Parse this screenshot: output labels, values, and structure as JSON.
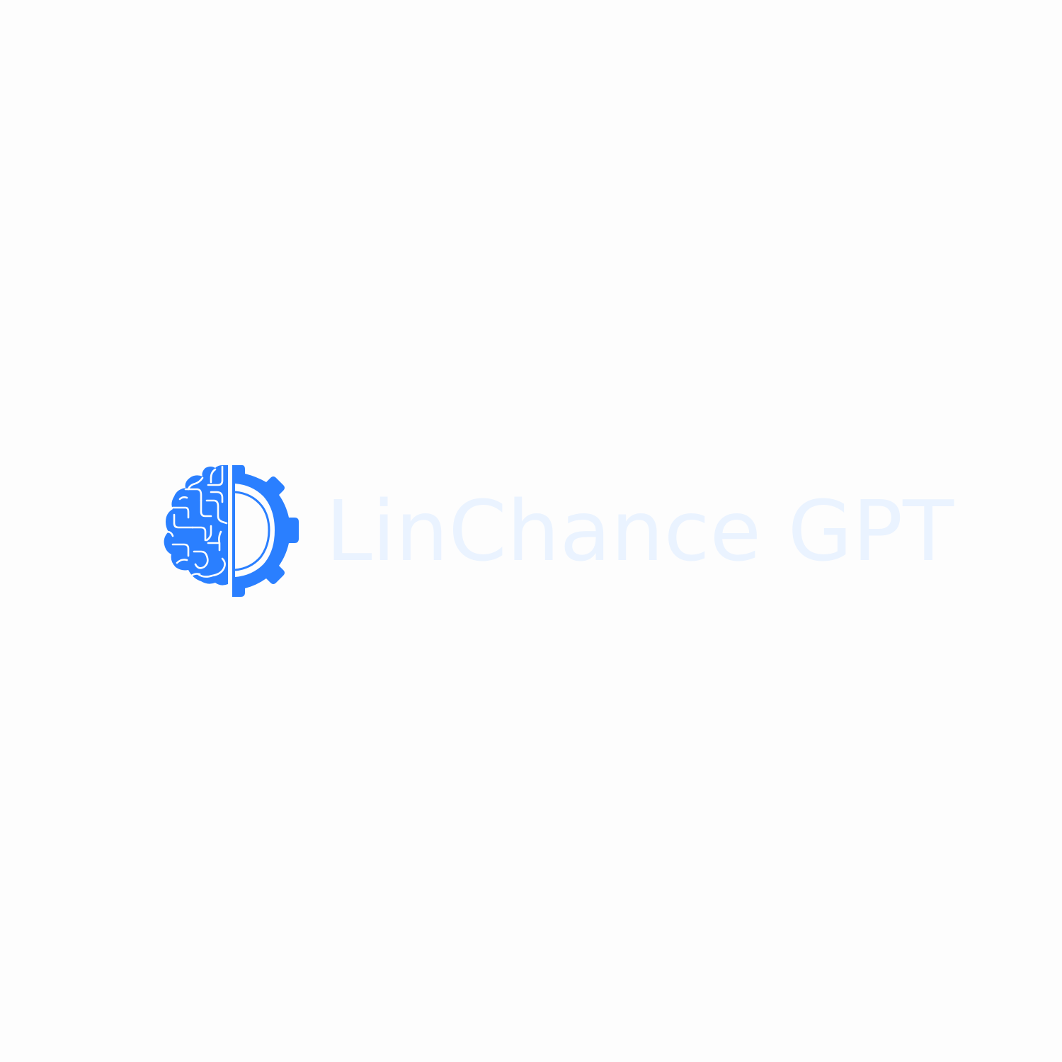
{
  "logo": {
    "brand_name": "LinChance GPT",
    "icon": "brain-gear-icon",
    "colors": {
      "mark": "#2a7fff",
      "wordmark": "#eaf3ff",
      "background": "#fdfdfd"
    }
  }
}
